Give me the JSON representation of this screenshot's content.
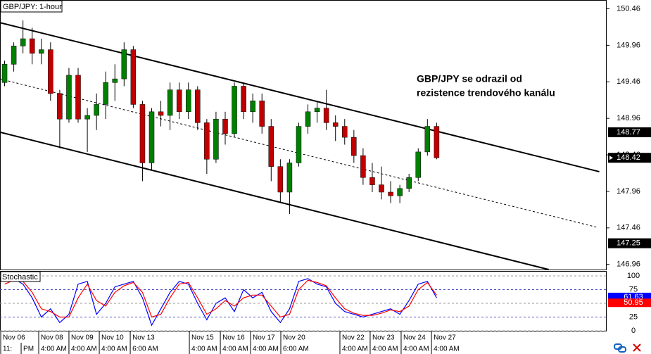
{
  "chart_data": [
    {
      "type": "candlestick",
      "title": "GBP/JPY: 1-hour",
      "annotation": [
        "GBP/JPY se odrazil od",
        "rezistence trendového kanálu"
      ],
      "xlim": [
        -0.5,
        65.5
      ],
      "ylim": [
        146.89,
        150.58
      ],
      "yticks": [
        146.96,
        147.46,
        147.96,
        148.46,
        148.96,
        149.46,
        149.96,
        150.46
      ],
      "up_color": "#008000",
      "down_color": "#c00000",
      "open": [
        149.45,
        149.7,
        149.95,
        150.05,
        149.85,
        149.9,
        149.3,
        148.95,
        149.55,
        148.95,
        149.0,
        149.15,
        149.45,
        149.5,
        149.9,
        149.15,
        148.35,
        149.05,
        149.0,
        149.35,
        149.05,
        149.35,
        148.9,
        148.4,
        148.95,
        148.75,
        149.4,
        149.05,
        149.2,
        148.85,
        148.3,
        147.95,
        148.35,
        148.85,
        149.05,
        149.1,
        148.9,
        148.85,
        148.7,
        148.45,
        148.15,
        148.05,
        147.95,
        147.9,
        148.0,
        148.15,
        148.5,
        148.85
      ],
      "high": [
        149.75,
        150.0,
        150.3,
        150.2,
        150.05,
        150.0,
        149.35,
        149.65,
        149.65,
        149.1,
        149.3,
        149.6,
        149.7,
        150.0,
        149.95,
        149.2,
        149.1,
        149.2,
        149.45,
        149.45,
        149.45,
        149.4,
        148.95,
        149.05,
        149.05,
        149.45,
        149.45,
        149.3,
        149.3,
        148.95,
        148.4,
        148.4,
        148.9,
        149.15,
        149.2,
        149.35,
        149.0,
        148.95,
        148.8,
        148.55,
        148.35,
        148.3,
        148.1,
        148.05,
        148.2,
        148.55,
        148.95,
        148.9
      ],
      "low": [
        149.4,
        149.6,
        149.85,
        149.7,
        149.7,
        149.2,
        148.55,
        148.9,
        148.9,
        148.5,
        148.8,
        148.95,
        149.2,
        149.4,
        149.1,
        148.1,
        148.25,
        148.85,
        148.8,
        148.95,
        148.95,
        148.8,
        148.2,
        148.35,
        148.6,
        148.7,
        148.95,
        148.9,
        148.75,
        148.1,
        147.8,
        147.65,
        148.3,
        148.75,
        148.9,
        148.8,
        148.65,
        148.6,
        148.35,
        148.05,
        147.95,
        147.85,
        147.8,
        147.8,
        147.95,
        148.1,
        148.45,
        148.4
      ],
      "close": [
        149.7,
        149.95,
        150.05,
        149.85,
        149.9,
        149.3,
        148.95,
        149.55,
        148.95,
        149.0,
        149.15,
        149.45,
        149.5,
        149.9,
        149.15,
        148.35,
        149.05,
        149.0,
        149.35,
        149.05,
        149.35,
        148.9,
        148.4,
        148.95,
        148.75,
        149.4,
        149.05,
        149.2,
        148.85,
        148.3,
        147.95,
        148.35,
        148.85,
        149.05,
        149.1,
        148.9,
        148.85,
        148.7,
        148.45,
        148.15,
        148.05,
        147.95,
        147.9,
        148.0,
        148.15,
        148.5,
        148.85,
        148.42
      ],
      "trend_lines": [
        {
          "x": [
            -0.5,
            64.7
          ],
          "y": [
            150.27,
            148.23
          ],
          "style": "solid"
        },
        {
          "x": [
            -0.5,
            64.4
          ],
          "y": [
            149.5,
            147.47
          ],
          "style": "dashed"
        },
        {
          "x": [
            -0.5,
            59.2
          ],
          "y": [
            148.77,
            146.89
          ],
          "style": "solid"
        }
      ],
      "price_markers": [
        148.77,
        148.42,
        147.25
      ]
    },
    {
      "type": "line",
      "title": "Stochastic",
      "xlim": [
        -0.5,
        65.5
      ],
      "ylim": [
        -1.3,
        109
      ],
      "yticks": [
        0,
        25,
        50,
        75,
        100
      ],
      "xticks": [
        {
          "value": -0.5,
          "label": "Nov 06"
        },
        {
          "value": 3.71,
          "label": "Nov 08"
        },
        {
          "value": 7.0,
          "label": "Nov 09"
        },
        {
          "value": 10.3,
          "label": "Nov 10"
        },
        {
          "value": 13.67,
          "label": "Nov 13"
        },
        {
          "value": 20.1,
          "label": "Nov 15"
        },
        {
          "value": 23.47,
          "label": "Nov 16"
        },
        {
          "value": 26.76,
          "label": "Nov 17"
        },
        {
          "value": 30.05,
          "label": "Nov 20"
        },
        {
          "value": 36.48,
          "label": "Nov 22"
        },
        {
          "value": 39.77,
          "label": "Nov 23"
        },
        {
          "value": 43.14,
          "label": "Nov 24"
        },
        {
          "value": 46.44,
          "label": "Nov 27"
        }
      ],
      "xticks2": [
        {
          "value": -0.5,
          "label": "11:"
        },
        {
          "value": 1.8,
          "label": "PM"
        },
        {
          "value": 3.71,
          "label": "4:00 AM"
        },
        {
          "value": 7.0,
          "label": "4:00 AM"
        },
        {
          "value": 10.3,
          "label": "4:00 AM"
        },
        {
          "value": 13.67,
          "label": "6:00 AM"
        },
        {
          "value": 20.1,
          "label": "4:00 AM"
        },
        {
          "value": 23.47,
          "label": "4:00 AM"
        },
        {
          "value": 26.76,
          "label": "4:00 AM"
        },
        {
          "value": 30.05,
          "label": "6:00 AM"
        },
        {
          "value": 36.48,
          "label": "4:00 AM"
        },
        {
          "value": 39.77,
          "label": "4:00 AM"
        },
        {
          "value": 43.14,
          "label": "4:00 AM"
        },
        {
          "value": 46.44,
          "label": "4:00 AM"
        }
      ],
      "series": [
        {
          "color": "#0000ff",
          "values": [
            90,
            95,
            85,
            60,
            25,
            40,
            15,
            30,
            85,
            90,
            30,
            50,
            80,
            85,
            90,
            60,
            10,
            40,
            70,
            90,
            85,
            50,
            20,
            50,
            60,
            35,
            75,
            60,
            70,
            35,
            15,
            40,
            90,
            95,
            85,
            80,
            50,
            35,
            30,
            25,
            30,
            35,
            40,
            30,
            55,
            85,
            90,
            60
          ],
          "current": 61.63
        },
        {
          "color": "#ff0000",
          "values": [
            85,
            92,
            90,
            70,
            40,
            35,
            25,
            25,
            60,
            85,
            55,
            45,
            70,
            82,
            88,
            70,
            25,
            30,
            60,
            85,
            88,
            60,
            30,
            40,
            55,
            45,
            60,
            65,
            65,
            45,
            25,
            30,
            75,
            92,
            88,
            82,
            60,
            40,
            32,
            28,
            28,
            32,
            38,
            35,
            45,
            75,
            88,
            65
          ],
          "current": 50.95
        }
      ]
    }
  ]
}
